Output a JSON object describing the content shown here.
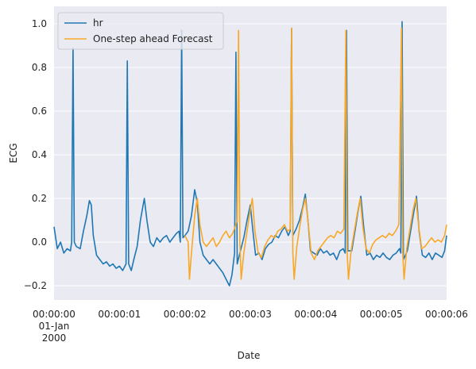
{
  "chart_data": {
    "type": "line",
    "xlabel": "Date",
    "ylabel": "ECG",
    "xlim": [
      0,
      6
    ],
    "ylim": [
      -0.265,
      1.08
    ],
    "xticks": [
      {
        "value": 0,
        "label": "00:00:00\n01-Jan\n2000"
      },
      {
        "value": 1,
        "label": "00:00:01"
      },
      {
        "value": 2,
        "label": "00:00:02"
      },
      {
        "value": 3,
        "label": "00:00:03"
      },
      {
        "value": 4,
        "label": "00:00:04"
      },
      {
        "value": 5,
        "label": "00:00:05"
      },
      {
        "value": 6,
        "label": "00:00:06"
      }
    ],
    "yticks": [
      {
        "value": -0.2,
        "label": "−0.2"
      },
      {
        "value": 0,
        "label": "0.0"
      },
      0.2,
      0.4,
      0.6,
      0.8,
      {
        "value": 1,
        "label": "1.0"
      }
    ],
    "grid": "y",
    "background": "#eaeaf2",
    "legend": "upper left",
    "series": [
      {
        "name": "hr",
        "color": "#1f77b4",
        "x": [
          0.0,
          0.05,
          0.1,
          0.15,
          0.2,
          0.25,
          0.27,
          0.29,
          0.31,
          0.34,
          0.4,
          0.45,
          0.5,
          0.54,
          0.57,
          0.6,
          0.65,
          0.7,
          0.75,
          0.8,
          0.85,
          0.9,
          0.95,
          1.0,
          1.05,
          1.1,
          1.12,
          1.14,
          1.18,
          1.22,
          1.27,
          1.32,
          1.38,
          1.42,
          1.47,
          1.52,
          1.57,
          1.62,
          1.67,
          1.72,
          1.77,
          1.82,
          1.87,
          1.91,
          1.93,
          1.95,
          1.97,
          2.0,
          2.05,
          2.1,
          2.15,
          2.19,
          2.23,
          2.28,
          2.33,
          2.38,
          2.43,
          2.48,
          2.53,
          2.58,
          2.63,
          2.68,
          2.72,
          2.76,
          2.78,
          2.8,
          2.84,
          2.9,
          2.95,
          3.0,
          3.04,
          3.08,
          3.13,
          3.18,
          3.23,
          3.28,
          3.33,
          3.38,
          3.43,
          3.48,
          3.53,
          3.58,
          3.61,
          3.63,
          3.65,
          3.7,
          3.75,
          3.8,
          3.84,
          3.88,
          3.92,
          3.97,
          4.02,
          4.07,
          4.12,
          4.17,
          4.22,
          4.27,
          4.32,
          4.37,
          4.42,
          4.45,
          4.47,
          4.49,
          4.55,
          4.6,
          4.65,
          4.69,
          4.73,
          4.78,
          4.83,
          4.88,
          4.93,
          4.98,
          5.03,
          5.08,
          5.13,
          5.18,
          5.23,
          5.28,
          5.3,
          5.32,
          5.34,
          5.4,
          5.45,
          5.5,
          5.54,
          5.58,
          5.63,
          5.68,
          5.73,
          5.78,
          5.83,
          5.88,
          5.93,
          5.97,
          6.0
        ],
        "values": [
          0.07,
          -0.03,
          0.0,
          -0.05,
          -0.03,
          -0.04,
          0.0,
          0.89,
          0.0,
          -0.02,
          -0.03,
          0.05,
          0.12,
          0.19,
          0.17,
          0.03,
          -0.06,
          -0.08,
          -0.1,
          -0.09,
          -0.11,
          -0.1,
          -0.12,
          -0.11,
          -0.13,
          -0.1,
          0.83,
          -0.1,
          -0.13,
          -0.08,
          -0.02,
          0.1,
          0.2,
          0.1,
          0.0,
          -0.02,
          0.02,
          0.0,
          0.02,
          0.03,
          0.0,
          0.02,
          0.04,
          0.05,
          0.0,
          0.97,
          0.02,
          0.03,
          0.05,
          0.12,
          0.24,
          0.18,
          0.0,
          -0.06,
          -0.08,
          -0.1,
          -0.08,
          -0.1,
          -0.12,
          -0.14,
          -0.17,
          -0.2,
          -0.15,
          -0.05,
          0.87,
          -0.1,
          -0.05,
          0.02,
          0.1,
          0.17,
          0.05,
          -0.06,
          -0.05,
          -0.08,
          -0.03,
          -0.01,
          0.0,
          0.03,
          0.02,
          0.05,
          0.07,
          0.03,
          0.05,
          0.98,
          0.03,
          0.06,
          0.1,
          0.16,
          0.22,
          0.1,
          -0.04,
          -0.05,
          -0.06,
          -0.03,
          -0.05,
          -0.04,
          -0.06,
          -0.05,
          -0.08,
          -0.04,
          -0.03,
          -0.05,
          0.97,
          -0.04,
          -0.04,
          0.05,
          0.15,
          0.21,
          0.08,
          -0.06,
          -0.05,
          -0.08,
          -0.06,
          -0.07,
          -0.05,
          -0.07,
          -0.08,
          -0.06,
          -0.05,
          -0.03,
          -0.05,
          1.01,
          -0.08,
          -0.04,
          0.05,
          0.14,
          0.21,
          0.05,
          -0.06,
          -0.07,
          -0.05,
          -0.08,
          -0.05,
          -0.06,
          -0.07,
          -0.04,
          0.03
        ]
      },
      {
        "name": "One-step ahead Forecast",
        "color": "#f9a825",
        "x": [
          2.0,
          2.05,
          2.07,
          2.1,
          2.15,
          2.19,
          2.23,
          2.28,
          2.33,
          2.38,
          2.43,
          2.48,
          2.53,
          2.58,
          2.63,
          2.68,
          2.73,
          2.78,
          2.8,
          2.82,
          2.84,
          2.86,
          2.9,
          2.95,
          3.0,
          3.03,
          3.07,
          3.12,
          3.17,
          3.22,
          3.27,
          3.32,
          3.37,
          3.42,
          3.47,
          3.52,
          3.57,
          3.61,
          3.63,
          3.65,
          3.67,
          3.71,
          3.76,
          3.8,
          3.84,
          3.88,
          3.93,
          3.98,
          4.03,
          4.08,
          4.13,
          4.18,
          4.23,
          4.28,
          4.33,
          4.38,
          4.43,
          4.46,
          4.48,
          4.5,
          4.54,
          4.59,
          4.64,
          4.68,
          4.72,
          4.77,
          4.82,
          4.87,
          4.92,
          4.97,
          5.02,
          5.07,
          5.12,
          5.17,
          5.22,
          5.27,
          5.31,
          5.33,
          5.35,
          5.39,
          5.44,
          5.49,
          5.53,
          5.57,
          5.62,
          5.67,
          5.72,
          5.77,
          5.82,
          5.87,
          5.92,
          5.97,
          6.0
        ],
        "values": [
          0.03,
          0.0,
          -0.17,
          -0.05,
          0.12,
          0.2,
          0.08,
          0.0,
          -0.02,
          0.0,
          0.02,
          -0.02,
          0.0,
          0.03,
          0.05,
          0.02,
          0.04,
          0.08,
          0.1,
          0.97,
          0.0,
          -0.17,
          -0.05,
          0.05,
          0.15,
          0.2,
          0.05,
          -0.05,
          -0.07,
          -0.02,
          0.01,
          0.03,
          0.02,
          0.05,
          0.06,
          0.08,
          0.05,
          0.06,
          0.98,
          -0.05,
          -0.17,
          -0.02,
          0.08,
          0.15,
          0.2,
          0.1,
          -0.05,
          -0.08,
          -0.04,
          -0.02,
          0.0,
          0.02,
          0.03,
          0.02,
          0.05,
          0.04,
          0.06,
          0.97,
          -0.05,
          -0.17,
          -0.04,
          0.05,
          0.14,
          0.2,
          0.07,
          -0.03,
          -0.05,
          -0.01,
          0.01,
          0.02,
          0.03,
          0.02,
          0.04,
          0.03,
          0.05,
          0.08,
          0.98,
          -0.05,
          -0.17,
          -0.03,
          0.06,
          0.15,
          0.2,
          0.08,
          -0.03,
          -0.02,
          0.0,
          0.02,
          0.0,
          0.01,
          0.0,
          0.03,
          0.08
        ]
      }
    ]
  }
}
